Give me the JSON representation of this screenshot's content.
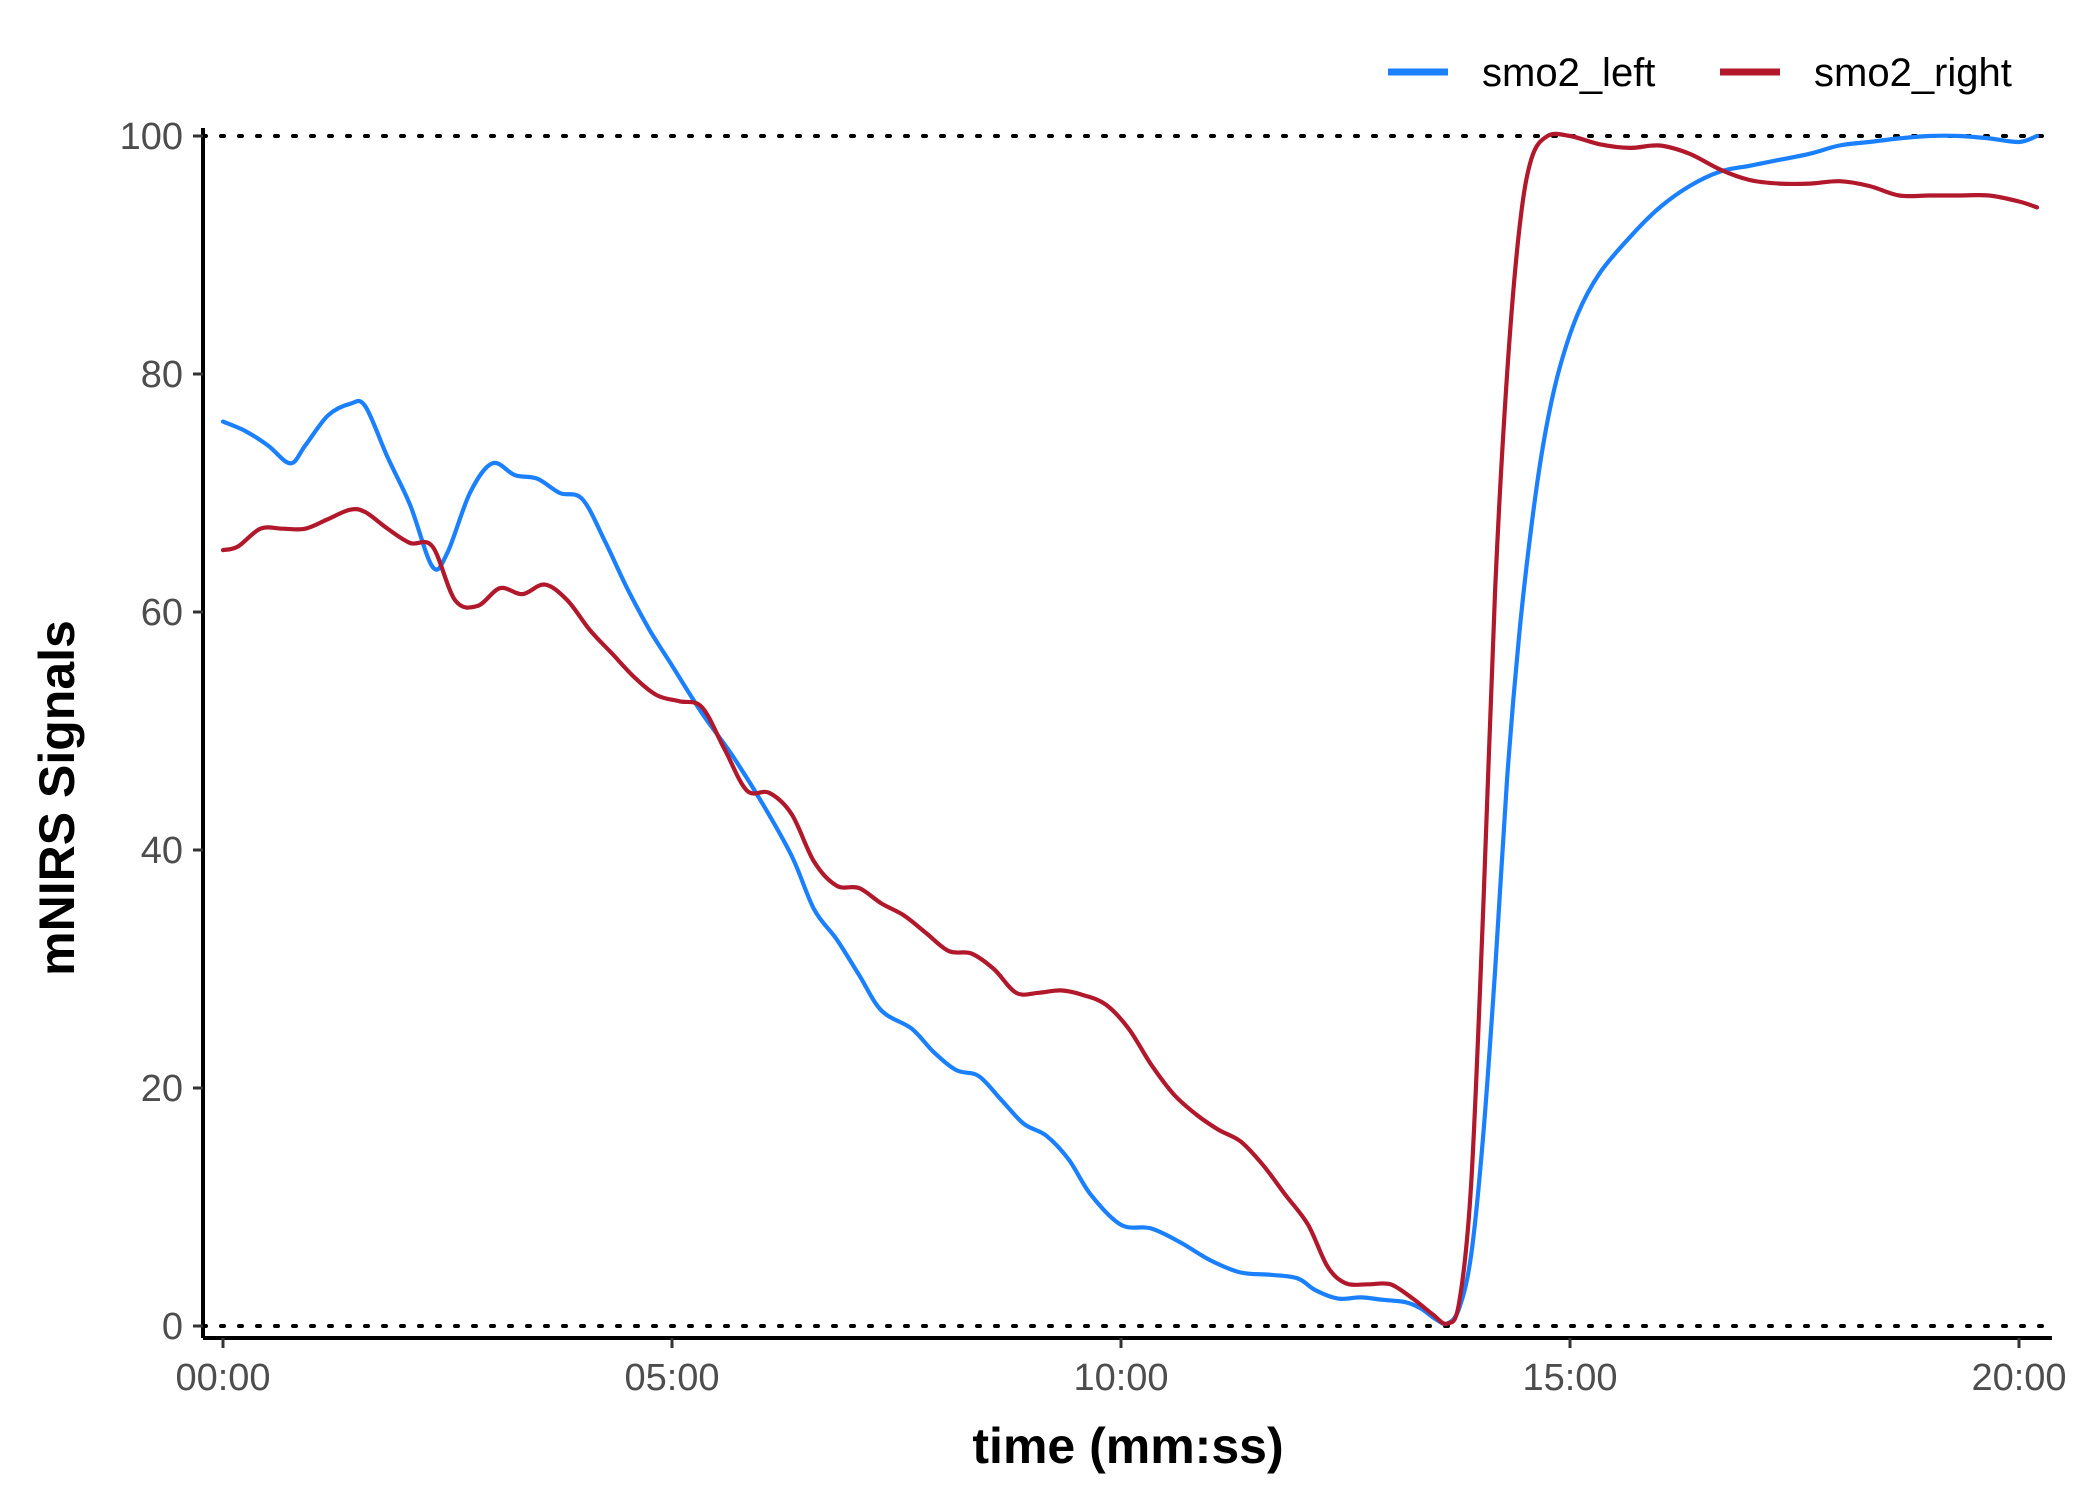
{
  "chart_data": {
    "type": "line",
    "title": "",
    "xlabel": "time (mm:ss)",
    "ylabel": "mNIRS Signals",
    "xlim": [
      0,
      1222
    ],
    "ylim": [
      0,
      100
    ],
    "x_ticks": [
      0,
      300,
      600,
      900,
      1200
    ],
    "x_tick_labels": [
      "00:00",
      "05:00",
      "10:00",
      "15:00",
      "20:00"
    ],
    "y_ticks": [
      0,
      20,
      40,
      60,
      80,
      100
    ],
    "y_tick_labels": [
      "0",
      "20",
      "40",
      "60",
      "80",
      "100"
    ],
    "reference_lines": [
      0,
      100
    ],
    "grid": false,
    "legend_position": "top-right",
    "series": [
      {
        "name": "smo2_left",
        "color": "#1a80ff",
        "points": [
          [
            0,
            76
          ],
          [
            15,
            75.2
          ],
          [
            30,
            74
          ],
          [
            45,
            72.5
          ],
          [
            55,
            74
          ],
          [
            70,
            76.5
          ],
          [
            85,
            77.5
          ],
          [
            95,
            77.3
          ],
          [
            110,
            73
          ],
          [
            125,
            69
          ],
          [
            140,
            63.8
          ],
          [
            150,
            65
          ],
          [
            165,
            70
          ],
          [
            180,
            72.5
          ],
          [
            195,
            71.5
          ],
          [
            210,
            71.2
          ],
          [
            225,
            70
          ],
          [
            240,
            69.5
          ],
          [
            255,
            66
          ],
          [
            270,
            62
          ],
          [
            285,
            58.5
          ],
          [
            300,
            55.5
          ],
          [
            320,
            51.5
          ],
          [
            340,
            48
          ],
          [
            360,
            44
          ],
          [
            380,
            39.5
          ],
          [
            395,
            35
          ],
          [
            410,
            32.5
          ],
          [
            425,
            29.5
          ],
          [
            440,
            26.5
          ],
          [
            460,
            25
          ],
          [
            475,
            23
          ],
          [
            490,
            21.5
          ],
          [
            505,
            21
          ],
          [
            520,
            19
          ],
          [
            535,
            17
          ],
          [
            550,
            16
          ],
          [
            565,
            14
          ],
          [
            580,
            11
          ],
          [
            600,
            8.5
          ],
          [
            620,
            8.2
          ],
          [
            640,
            7
          ],
          [
            660,
            5.5
          ],
          [
            680,
            4.5
          ],
          [
            700,
            4.3
          ],
          [
            718,
            4
          ],
          [
            730,
            3
          ],
          [
            745,
            2.3
          ],
          [
            760,
            2.4
          ],
          [
            775,
            2.2
          ],
          [
            790,
            2
          ],
          [
            800,
            1.5
          ],
          [
            810,
            0.6
          ],
          [
            818,
            0.2
          ],
          [
            826,
            1.5
          ],
          [
            834,
            6
          ],
          [
            842,
            16
          ],
          [
            850,
            30
          ],
          [
            858,
            46
          ],
          [
            866,
            58
          ],
          [
            874,
            67
          ],
          [
            882,
            74
          ],
          [
            892,
            80
          ],
          [
            905,
            85
          ],
          [
            920,
            88.5
          ],
          [
            940,
            91.5
          ],
          [
            960,
            94
          ],
          [
            980,
            95.8
          ],
          [
            1000,
            97
          ],
          [
            1020,
            97.5
          ],
          [
            1040,
            98
          ],
          [
            1060,
            98.5
          ],
          [
            1080,
            99.2
          ],
          [
            1100,
            99.5
          ],
          [
            1120,
            99.8
          ],
          [
            1140,
            100
          ],
          [
            1160,
            100
          ],
          [
            1180,
            99.8
          ],
          [
            1200,
            99.5
          ],
          [
            1212,
            100
          ]
        ]
      },
      {
        "name": "smo2_right",
        "color": "#b2182b",
        "points": [
          [
            0,
            65.2
          ],
          [
            10,
            65.5
          ],
          [
            25,
            67
          ],
          [
            40,
            67
          ],
          [
            55,
            67
          ],
          [
            70,
            67.8
          ],
          [
            85,
            68.6
          ],
          [
            95,
            68.4
          ],
          [
            110,
            67
          ],
          [
            125,
            65.8
          ],
          [
            140,
            65.5
          ],
          [
            155,
            61
          ],
          [
            170,
            60.5
          ],
          [
            185,
            62
          ],
          [
            200,
            61.5
          ],
          [
            215,
            62.3
          ],
          [
            230,
            61
          ],
          [
            245,
            58.5
          ],
          [
            260,
            56.5
          ],
          [
            275,
            54.5
          ],
          [
            290,
            53
          ],
          [
            305,
            52.5
          ],
          [
            320,
            52
          ],
          [
            335,
            48.5
          ],
          [
            350,
            45
          ],
          [
            365,
            44.8
          ],
          [
            380,
            43
          ],
          [
            395,
            39
          ],
          [
            410,
            37
          ],
          [
            425,
            36.8
          ],
          [
            440,
            35.5
          ],
          [
            455,
            34.5
          ],
          [
            470,
            33
          ],
          [
            485,
            31.5
          ],
          [
            500,
            31.3
          ],
          [
            515,
            30
          ],
          [
            530,
            28
          ],
          [
            545,
            28
          ],
          [
            560,
            28.2
          ],
          [
            575,
            27.8
          ],
          [
            590,
            27
          ],
          [
            605,
            25
          ],
          [
            620,
            22
          ],
          [
            635,
            19.5
          ],
          [
            650,
            17.8
          ],
          [
            665,
            16.5
          ],
          [
            680,
            15.5
          ],
          [
            695,
            13.5
          ],
          [
            710,
            11
          ],
          [
            725,
            8.5
          ],
          [
            738,
            5
          ],
          [
            750,
            3.6
          ],
          [
            765,
            3.5
          ],
          [
            780,
            3.5
          ],
          [
            795,
            2.3
          ],
          [
            808,
            1
          ],
          [
            818,
            0.2
          ],
          [
            826,
            2
          ],
          [
            834,
            12
          ],
          [
            842,
            35
          ],
          [
            850,
            62
          ],
          [
            858,
            80
          ],
          [
            866,
            92
          ],
          [
            874,
            98
          ],
          [
            885,
            100
          ],
          [
            900,
            100
          ],
          [
            920,
            99.3
          ],
          [
            940,
            99
          ],
          [
            960,
            99.2
          ],
          [
            980,
            98.5
          ],
          [
            1000,
            97.2
          ],
          [
            1020,
            96.3
          ],
          [
            1040,
            96
          ],
          [
            1060,
            96
          ],
          [
            1080,
            96.2
          ],
          [
            1100,
            95.8
          ],
          [
            1120,
            95
          ],
          [
            1140,
            95
          ],
          [
            1160,
            95
          ],
          [
            1180,
            95
          ],
          [
            1200,
            94.5
          ],
          [
            1212,
            94
          ]
        ]
      }
    ]
  }
}
